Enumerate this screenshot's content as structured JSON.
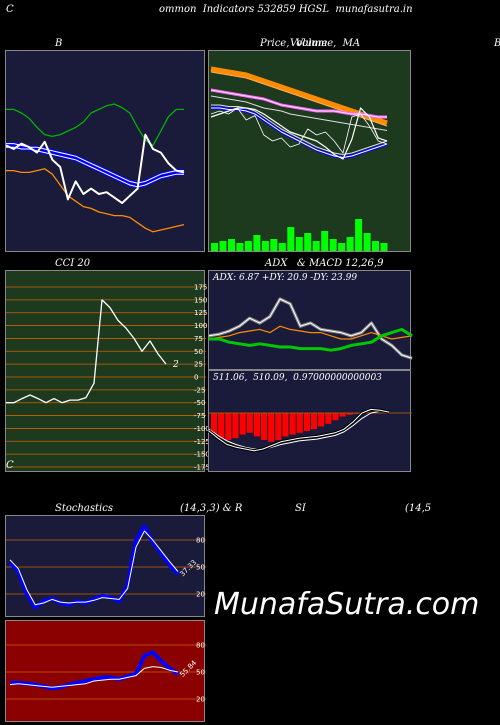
{
  "header": {
    "title": "ommon  Indicators 532859 HGSL  munafasutra.in",
    "left_letter": "C",
    "right_letter": "C"
  },
  "titles": {
    "bb": "B",
    "price": "Price,  Volume,  MA",
    "price_overlap": "Volume",
    "far_right": "B",
    "cci": "CCI 20",
    "adx": "ADX   & MACD 12,26,9",
    "stoch": "Stochastics",
    "stoch_params": "(14,3,3) & R",
    "rsi": "SI",
    "rsi_params": "(14,5"
  },
  "watermark": "MunafaSutra.com",
  "colors": {
    "navy": "#1a1a3a",
    "green_bg": "#1e3a1e",
    "red_bg": "#8b0000",
    "orange": "#ff8c00",
    "blue": "#0000ff",
    "green_line": "#00c800",
    "volume": "#00ff00",
    "grid_orange": "#c86400"
  },
  "chart_data": [
    {
      "id": "bollinger",
      "type": "line",
      "title": "B",
      "ylim": [
        0,
        100
      ],
      "series": [
        {
          "values": [
            72,
            72,
            70,
            67,
            62,
            58,
            57,
            58,
            60,
            62,
            65,
            70,
            72,
            74,
            75,
            73,
            70,
            62,
            55,
            52,
            60,
            68,
            72,
            72
          ]
        },
        {
          "values": [
            53,
            53,
            52,
            51,
            51,
            50,
            49,
            48,
            47,
            46,
            44,
            42,
            40,
            38,
            36,
            34,
            32,
            31,
            32,
            34,
            36,
            37,
            38,
            38
          ]
        },
        {
          "values": [
            51,
            51,
            50,
            50,
            49,
            48,
            47,
            46,
            45,
            44,
            42,
            40,
            38,
            36,
            34,
            32,
            30,
            29,
            30,
            32,
            34,
            35,
            36,
            36
          ]
        },
        {
          "values": [
            38,
            38,
            37,
            37,
            38,
            39,
            36,
            30,
            24,
            21,
            18,
            17,
            15,
            14,
            13,
            13,
            12,
            9,
            6,
            4,
            5,
            6,
            7,
            8
          ]
        },
        {
          "values": [
            52,
            50,
            53,
            51,
            48,
            54,
            44,
            40,
            22,
            32,
            25,
            28,
            25,
            26,
            23,
            20,
            24,
            28,
            58,
            50,
            48,
            42,
            38,
            37
          ]
        }
      ]
    },
    {
      "id": "price",
      "type": "line",
      "title": "Price,  Volume,  MA",
      "ylim": [
        0,
        100
      ],
      "series": [
        {
          "values": [
            92,
            91,
            90,
            89,
            88,
            86,
            84,
            82,
            80,
            78,
            76,
            74,
            72,
            70,
            68,
            66,
            64,
            62,
            60,
            58,
            56
          ]
        },
        {
          "values": [
            90,
            89,
            88,
            87,
            86,
            84,
            82,
            80,
            78,
            76,
            74,
            72,
            70,
            68,
            66,
            64,
            62,
            60,
            58,
            56,
            54
          ]
        },
        {
          "values": [
            78,
            77,
            76,
            75,
            74,
            73,
            72,
            70,
            68,
            67,
            66,
            65,
            64,
            64,
            64,
            63,
            62,
            62,
            61,
            60,
            60
          ]
        },
        {
          "values": [
            74,
            73,
            72,
            71,
            70,
            68,
            66,
            65,
            64,
            62,
            61,
            60,
            59,
            58,
            57,
            56,
            55,
            54,
            53,
            52,
            51
          ]
        },
        {
          "values": [
            66,
            66,
            65,
            65,
            64,
            62,
            58,
            54,
            50,
            47,
            44,
            41,
            38,
            36,
            34,
            33,
            34,
            36,
            38,
            40,
            42
          ]
        },
        {
          "values": [
            68,
            68,
            67,
            67,
            66,
            64,
            60,
            56,
            52,
            49,
            46,
            43,
            40,
            38,
            36,
            35,
            36,
            38,
            40,
            42,
            44
          ]
        },
        {
          "values": [
            60,
            62,
            64,
            66,
            66,
            65,
            62,
            58,
            54,
            50,
            48,
            46,
            44,
            40,
            35,
            32,
            45,
            66,
            60,
            46,
            44
          ]
        },
        {
          "values": [
            62,
            64,
            62,
            66,
            58,
            61,
            48,
            44,
            46,
            40,
            42,
            52,
            48,
            50,
            44,
            36,
            60,
            62,
            54,
            44,
            42
          ]
        }
      ],
      "volume": [
        4,
        5,
        6,
        4,
        5,
        8,
        5,
        6,
        4,
        12,
        7,
        9,
        5,
        10,
        6,
        4,
        7,
        16,
        9,
        5,
        4
      ]
    },
    {
      "id": "cci",
      "type": "line",
      "title": "CCI 20",
      "ylim": [
        -175,
        175
      ],
      "ticks": [
        175,
        150,
        125,
        100,
        75,
        50,
        25,
        0,
        -25,
        -50,
        -75,
        -100,
        -125,
        -150,
        -175
      ],
      "values": [
        -50,
        -50,
        -42,
        -35,
        -42,
        -50,
        -42,
        -50,
        -45,
        -45,
        -40,
        -12,
        150,
        135,
        110,
        95,
        75,
        50,
        70,
        45,
        25
      ],
      "last_label": "2"
    },
    {
      "id": "adx",
      "type": "line",
      "title": "ADX   & MACD 12,26,9",
      "ylim": [
        0,
        50
      ],
      "text": "ADX: 6.87 +DY: 20.9 -DY: 23.99",
      "series": [
        {
          "values": [
            22,
            23,
            25,
            28,
            33,
            30,
            34,
            45,
            42,
            28,
            30,
            26,
            25,
            24,
            22,
            24,
            30,
            20,
            16,
            10,
            8
          ]
        },
        {
          "values": [
            20,
            21,
            22,
            24,
            25,
            26,
            24,
            28,
            26,
            25,
            24,
            24,
            22,
            20,
            20,
            22,
            24,
            22,
            20,
            21,
            22
          ]
        },
        {
          "values": [
            20,
            20,
            18,
            17,
            16,
            17,
            16,
            15,
            15,
            14,
            14,
            14,
            13,
            14,
            16,
            17,
            18,
            22,
            24,
            26,
            22
          ]
        }
      ]
    },
    {
      "id": "macd",
      "type": "bar",
      "text": "511.06,  510.09,  0.97000000000003",
      "ylim": [
        -60,
        20
      ],
      "histogram": [
        -25,
        -28,
        -30,
        -28,
        -24,
        -22,
        -26,
        -30,
        -32,
        -30,
        -26,
        -24,
        -22,
        -20,
        -18,
        -15,
        -12,
        -8,
        -4,
        -2,
        -1
      ],
      "series": [
        {
          "values": [
            -20,
            -28,
            -35,
            -38,
            -40,
            -42,
            -40,
            -36,
            -32,
            -30,
            -28,
            -27,
            -26,
            -24,
            -22,
            -18,
            -10,
            0,
            4,
            3,
            1
          ]
        },
        {
          "values": [
            -18,
            -25,
            -31,
            -35,
            -38,
            -40,
            -40,
            -38,
            -35,
            -33,
            -31,
            -30,
            -29,
            -27,
            -25,
            -21,
            -14,
            -6,
            0,
            2,
            2
          ]
        }
      ]
    },
    {
      "id": "stochastics",
      "type": "line",
      "title": "Stochastics",
      "ylim": [
        0,
        100
      ],
      "ticks": [
        80,
        50,
        20
      ],
      "series": [
        {
          "values": [
            55,
            45,
            20,
            5,
            12,
            15,
            10,
            8,
            12,
            10,
            14,
            18,
            16,
            12,
            30,
            80,
            95,
            78,
            65,
            52,
            42
          ]
        },
        {
          "values": [
            58,
            48,
            25,
            8,
            10,
            14,
            11,
            10,
            11,
            11,
            13,
            16,
            15,
            14,
            26,
            72,
            90,
            80,
            68,
            56,
            45
          ]
        }
      ],
      "last_label": "37.33"
    },
    {
      "id": "rsi",
      "type": "line",
      "title": "SI",
      "ylim": [
        0,
        100
      ],
      "ticks": [
        80,
        50,
        20
      ],
      "series": [
        {
          "values": [
            38,
            38,
            37,
            36,
            34,
            32,
            33,
            36,
            38,
            40,
            42,
            44,
            44,
            42,
            45,
            48,
            68,
            72,
            62,
            54,
            48
          ]
        },
        {
          "values": [
            36,
            37,
            36,
            35,
            34,
            33,
            34,
            35,
            36,
            37,
            40,
            41,
            42,
            42,
            44,
            46,
            54,
            56,
            55,
            52,
            50
          ]
        }
      ],
      "last_label": "55.84"
    }
  ]
}
